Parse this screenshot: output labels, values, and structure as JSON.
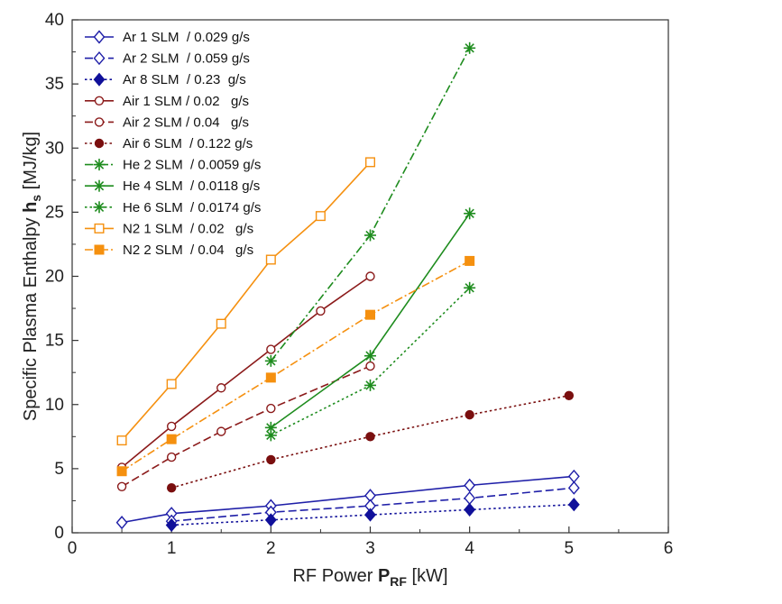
{
  "chart_data": {
    "type": "line",
    "title": "",
    "xlabel": {
      "prefix": "RF Power ",
      "bold": "P",
      "sub": "RF",
      "suffix": " [kW]"
    },
    "ylabel": {
      "prefix": "Specific Plasma Enthalpy ",
      "bold": "h",
      "sub": "s",
      "suffix": " [MJ/kg]"
    },
    "xlim": [
      0,
      6
    ],
    "ylim": [
      0,
      40
    ],
    "xticks": [
      "0",
      "1",
      "2",
      "3",
      "4",
      "5",
      "6"
    ],
    "yticks": [
      "0",
      "5",
      "10",
      "15",
      "20",
      "25",
      "30",
      "35",
      "40"
    ],
    "legend_position": "top-left",
    "series": [
      {
        "name": "Ar 1 SLM  / 0.029 g/s",
        "color": "#1f1fa8",
        "marker": "diamond-open",
        "dash": "solid",
        "x": [
          0.5,
          1.0,
          2.0,
          3.0,
          4.0,
          5.05
        ],
        "y": [
          0.8,
          1.5,
          2.1,
          2.9,
          3.7,
          4.4
        ]
      },
      {
        "name": "Ar 2 SLM  / 0.059 g/s",
        "color": "#1f1fa8",
        "marker": "diamond-open",
        "dash": "longdash",
        "x": [
          1.0,
          2.0,
          3.0,
          4.0,
          5.05
        ],
        "y": [
          0.9,
          1.6,
          2.1,
          2.7,
          3.5
        ]
      },
      {
        "name": "Ar 8 SLM  / 0.23  g/s",
        "color": "#10109a",
        "marker": "diamond-filled",
        "dash": "dot",
        "x": [
          1.0,
          2.0,
          3.0,
          4.0,
          5.05
        ],
        "y": [
          0.6,
          1.0,
          1.4,
          1.8,
          2.2
        ]
      },
      {
        "name": "Air 1 SLM / 0.02   g/s",
        "color": "#8b1a1a",
        "marker": "circle-open",
        "dash": "solid",
        "x": [
          0.5,
          1.0,
          1.5,
          2.0,
          2.5,
          3.0
        ],
        "y": [
          5.1,
          8.3,
          11.3,
          14.3,
          17.3,
          20.0
        ]
      },
      {
        "name": "Air 2 SLM / 0.04   g/s",
        "color": "#8b1a1a",
        "marker": "circle-open",
        "dash": "longdash",
        "x": [
          0.5,
          1.0,
          1.5,
          2.0,
          3.0
        ],
        "y": [
          3.6,
          5.9,
          7.9,
          9.7,
          13.0
        ]
      },
      {
        "name": "Air 6 SLM  / 0.122 g/s",
        "color": "#7a0f0f",
        "marker": "circle-filled",
        "dash": "dot",
        "x": [
          1.0,
          2.0,
          3.0,
          4.0,
          5.0
        ],
        "y": [
          3.5,
          5.7,
          7.5,
          9.2,
          10.7
        ]
      },
      {
        "name": "He 2 SLM  / 0.0059 g/s",
        "color": "#1e8c1e",
        "marker": "star",
        "dash": "dashdot",
        "x": [
          2.0,
          3.0,
          4.0
        ],
        "y": [
          13.4,
          23.2,
          37.8
        ]
      },
      {
        "name": "He 4 SLM  / 0.0118 g/s",
        "color": "#1e8c1e",
        "marker": "star",
        "dash": "solid",
        "x": [
          2.0,
          3.0,
          4.0
        ],
        "y": [
          8.2,
          13.8,
          24.9
        ]
      },
      {
        "name": "He 6 SLM  / 0.0174 g/s",
        "color": "#1e8c1e",
        "marker": "star",
        "dash": "dot",
        "x": [
          2.0,
          3.0,
          4.0
        ],
        "y": [
          7.6,
          11.5,
          19.1
        ]
      },
      {
        "name": "N2 1 SLM  / 0.02   g/s",
        "color": "#f5900f",
        "marker": "square-open",
        "dash": "solid",
        "x": [
          0.5,
          1.0,
          1.5,
          2.0,
          2.5,
          3.0
        ],
        "y": [
          7.2,
          11.6,
          16.3,
          21.3,
          24.7,
          28.9
        ]
      },
      {
        "name": "N2 2 SLM  / 0.04   g/s",
        "color": "#f5900f",
        "marker": "square-filled",
        "dash": "dashdot",
        "x": [
          0.5,
          1.0,
          2.0,
          3.0,
          4.0
        ],
        "y": [
          4.8,
          7.3,
          12.1,
          17.0,
          21.2
        ]
      }
    ]
  }
}
